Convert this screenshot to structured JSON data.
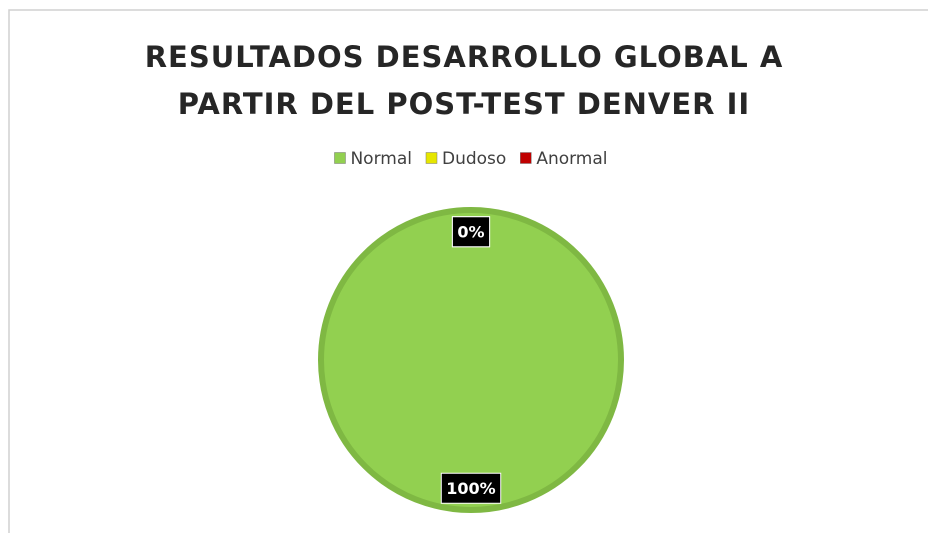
{
  "chart_data": {
    "type": "pie",
    "title": "RESULTADOS DESARROLLO GLOBAL A PARTIR DEL POST-TEST DENVER II",
    "categories": [
      "Normal",
      "Dudoso",
      "Anormal"
    ],
    "values": [
      100,
      0,
      0
    ],
    "value_labels": [
      "100%",
      "0%",
      "0%"
    ],
    "colors": [
      "#92d050",
      "#e6e600",
      "#c00000"
    ],
    "legend": "top"
  }
}
